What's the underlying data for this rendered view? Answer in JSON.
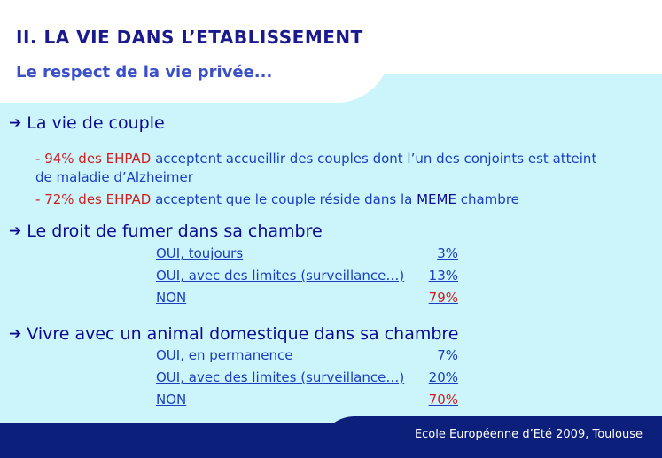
{
  "header": {
    "title": "II. LA VIE DANS L’ETABLISSEMENT",
    "subtitle": "Le respect de la vie privée..."
  },
  "couple": {
    "heading": "La vie de couple",
    "b1": {
      "pct": "94% des EHPAD",
      "text": "acceptent accueillir des couples dont l’un des conjoints est atteint",
      "text2": "de maladie d’Alzheimer"
    },
    "b2": {
      "pct": "72% des EHPAD",
      "text1": "acceptent que le couple réside dans la",
      "meme": "MEME",
      "text2": "chambre"
    }
  },
  "fumer": {
    "heading": "Le droit de fumer dans sa chambre",
    "rows": [
      {
        "label": "OUI, toujours",
        "value": "3%"
      },
      {
        "label": "OUI, avec des limites (surveillance…)",
        "value": "13%"
      },
      {
        "label": "NON",
        "value": "79%"
      }
    ]
  },
  "animal": {
    "heading": "Vivre avec un animal domestique dans sa chambre",
    "rows": [
      {
        "label": "OUI, en permanence",
        "value": "7%"
      },
      {
        "label": "OUI, avec des limites (surveillance…)",
        "value": "20%"
      },
      {
        "label": "NON",
        "value": "70%"
      }
    ]
  },
  "footer": {
    "text": "Ecole Européenne d’Eté 2009, Toulouse"
  },
  "colors": {
    "panel": "#ccf5fb",
    "navy": "#0c1f7a",
    "red": "#cc2020",
    "blue": "#1a3fbf"
  },
  "icons": {
    "section_arrow": "arrow-right-icon"
  }
}
